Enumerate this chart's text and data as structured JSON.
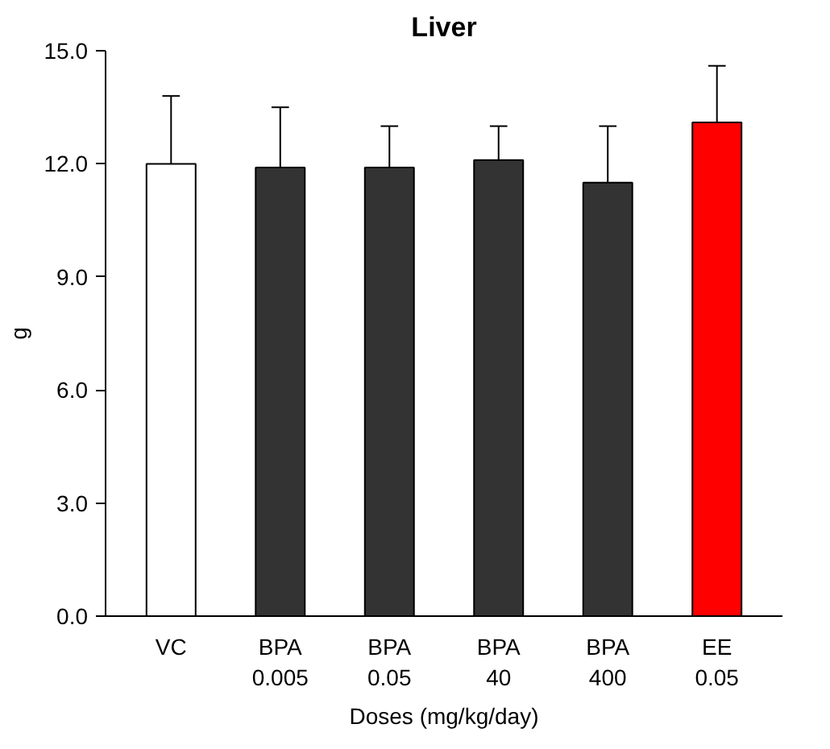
{
  "chart_data": {
    "type": "bar",
    "title": "Liver",
    "xlabel": "Doses (mg/kg/day)",
    "ylabel": "g",
    "categories": [
      "VC",
      "BPA\n0.005",
      "BPA\n0.05",
      "BPA\n40",
      "BPA\n400",
      "EE\n0.05"
    ],
    "values": [
      12.0,
      11.9,
      11.9,
      12.1,
      11.5,
      13.1
    ],
    "colors": [
      "#ffffff",
      "#333333",
      "#333333",
      "#333333",
      "#333333",
      "#ff0000"
    ],
    "errors": [
      [
        12.0,
        13.8
      ],
      [
        11.9,
        13.5
      ],
      [
        11.9,
        13.0
      ],
      [
        12.1,
        13.0
      ],
      [
        11.5,
        13.0
      ],
      [
        13.1,
        14.6
      ]
    ],
    "ylim": [
      0,
      15
    ],
    "yticks": [
      {
        "value": 0,
        "label": "0.0"
      },
      {
        "value": 3,
        "label": "3.0"
      },
      {
        "value": 6,
        "label": "6.0"
      },
      {
        "value": 9,
        "label": "9.0"
      },
      {
        "value": 12,
        "label": "12.0"
      },
      {
        "value": 15,
        "label": "15.0"
      }
    ],
    "grid": false
  }
}
